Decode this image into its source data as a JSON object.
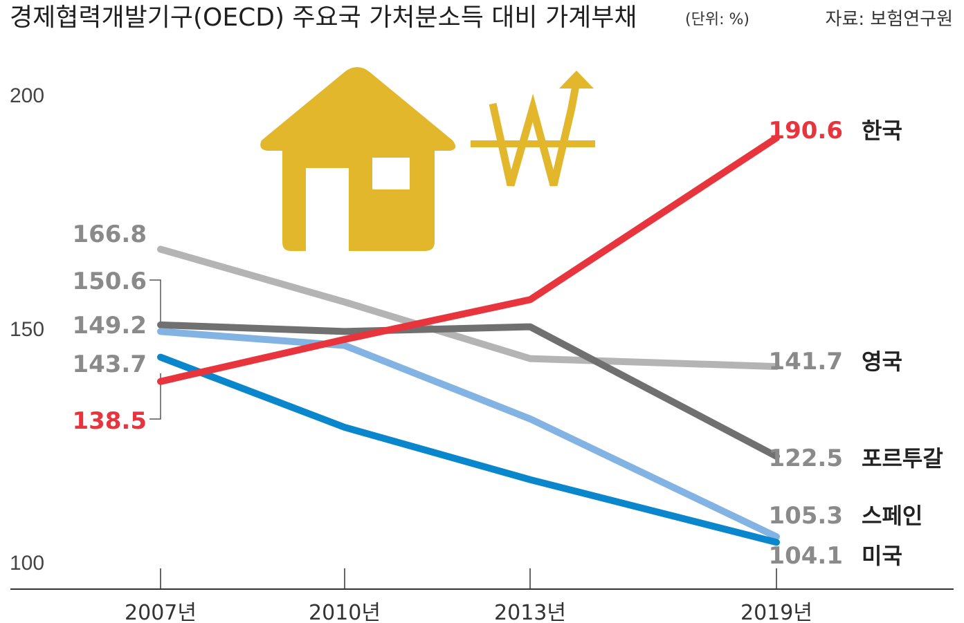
{
  "header": {
    "title": "경제협력개발기구(OECD) 주요국 가처분소득 대비 가계부채",
    "unit": "(단위: %)",
    "source": "자료: 보험연구원"
  },
  "chart_data": {
    "type": "line",
    "title": "경제협력개발기구(OECD) 주요국 가처분소득 대비 가계부채",
    "x": [
      "2007년",
      "2010년",
      "2013년",
      "2019년"
    ],
    "y_ticks": [
      "200",
      "150",
      "100"
    ],
    "ylim": [
      100,
      200
    ],
    "grid": false,
    "legend": "right-end labels",
    "series": [
      {
        "name": "영국",
        "values": [
          166.8,
          155.5,
          143.4,
          141.7
        ],
        "color": "#b4b4b4",
        "start_label": "166.8",
        "end_label": "141.7"
      },
      {
        "name": "포르투갈",
        "values": [
          150.6,
          149.2,
          150.2,
          122.5
        ],
        "color": "#707070",
        "start_label": "150.6",
        "end_label": "122.5"
      },
      {
        "name": "스페인",
        "values": [
          149.2,
          146.2,
          130.5,
          105.3
        ],
        "color": "#82b3e3",
        "start_label": "149.2",
        "end_label": "105.3"
      },
      {
        "name": "미국",
        "values": [
          143.7,
          128.7,
          117.5,
          104.1
        ],
        "color": "#0a87cc",
        "start_label": "143.7",
        "end_label": "104.1"
      },
      {
        "name": "한국",
        "values": [
          138.5,
          147.5,
          156.0,
          190.6
        ],
        "color": "#e8343d",
        "start_label": "138.5",
        "end_label": "190.6"
      }
    ]
  },
  "icons": {
    "house": "house-icon",
    "won": "won-arrow-icon",
    "accent": "#e2b72c"
  }
}
